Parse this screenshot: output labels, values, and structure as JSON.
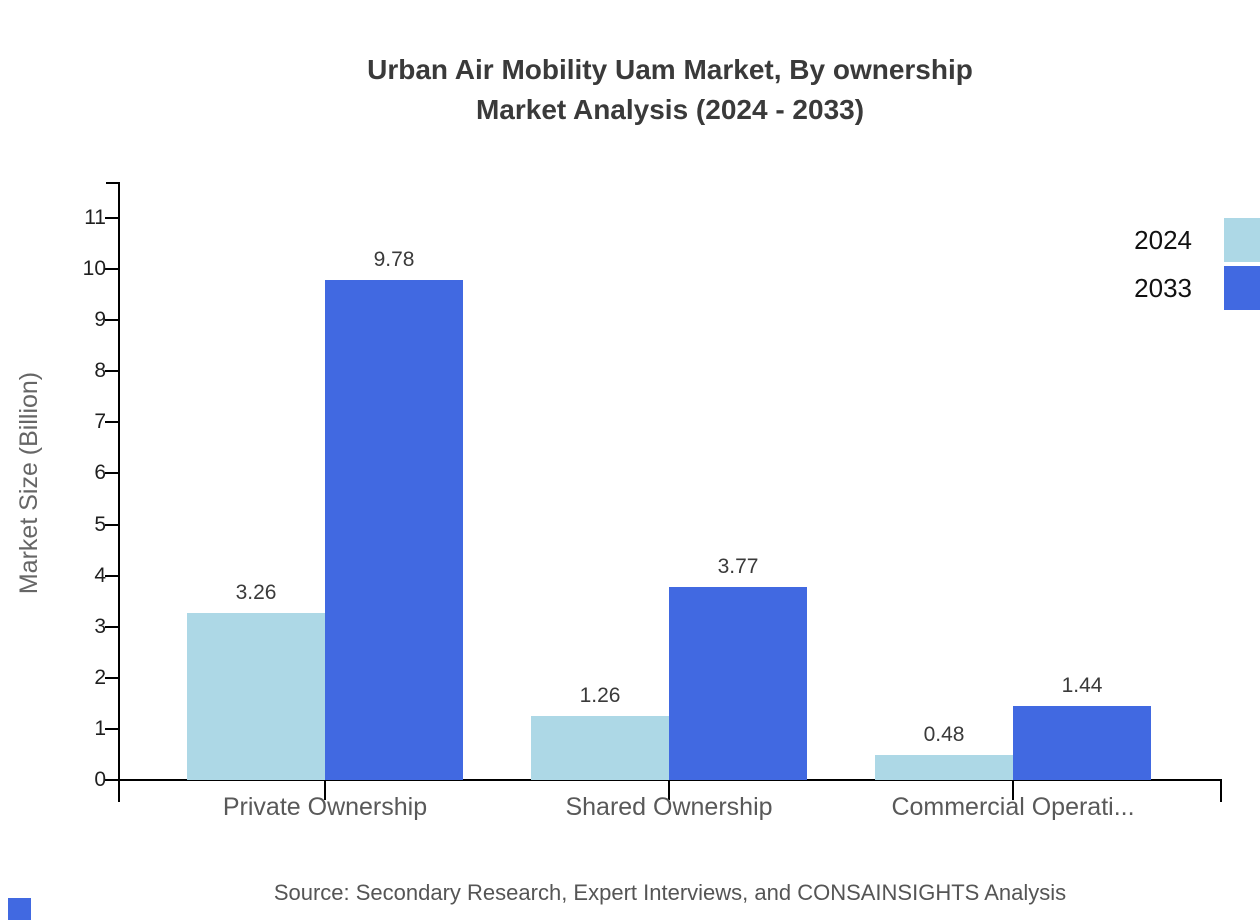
{
  "chart_data": {
    "type": "bar",
    "title_line1": "Urban Air Mobility Uam Market, By ownership",
    "title_line2": "Market Analysis (2024 - 2033)",
    "ylabel": "Market Size (Billion)",
    "xlabel": "",
    "categories": [
      "Private Ownership",
      "Shared Ownership",
      "Commercial Operati..."
    ],
    "series": [
      {
        "name": "2024",
        "color": "#ADD8E6",
        "values": [
          3.26,
          1.26,
          0.48
        ]
      },
      {
        "name": "2033",
        "color": "#4169E1",
        "values": [
          9.78,
          3.77,
          1.44
        ]
      }
    ],
    "value_labels": [
      [
        "3.26",
        "1.26",
        "0.48"
      ],
      [
        "9.78",
        "3.77",
        "1.44"
      ]
    ],
    "y_ticks": [
      0,
      1,
      2,
      3,
      4,
      5,
      6,
      7,
      8,
      9,
      10,
      11
    ],
    "ylim": [
      0,
      11.7
    ],
    "grid": false,
    "legend_position": "top-right",
    "source": "Source: Secondary Research, Expert Interviews, and CONSAINSIGHTS Analysis"
  },
  "colors": {
    "series_2024": "#ADD8E6",
    "series_2033": "#4169E1",
    "axis": "#000000",
    "title_text": "#3a3a3a",
    "muted_text": "#595959",
    "corner_mark": "#4169E1"
  }
}
